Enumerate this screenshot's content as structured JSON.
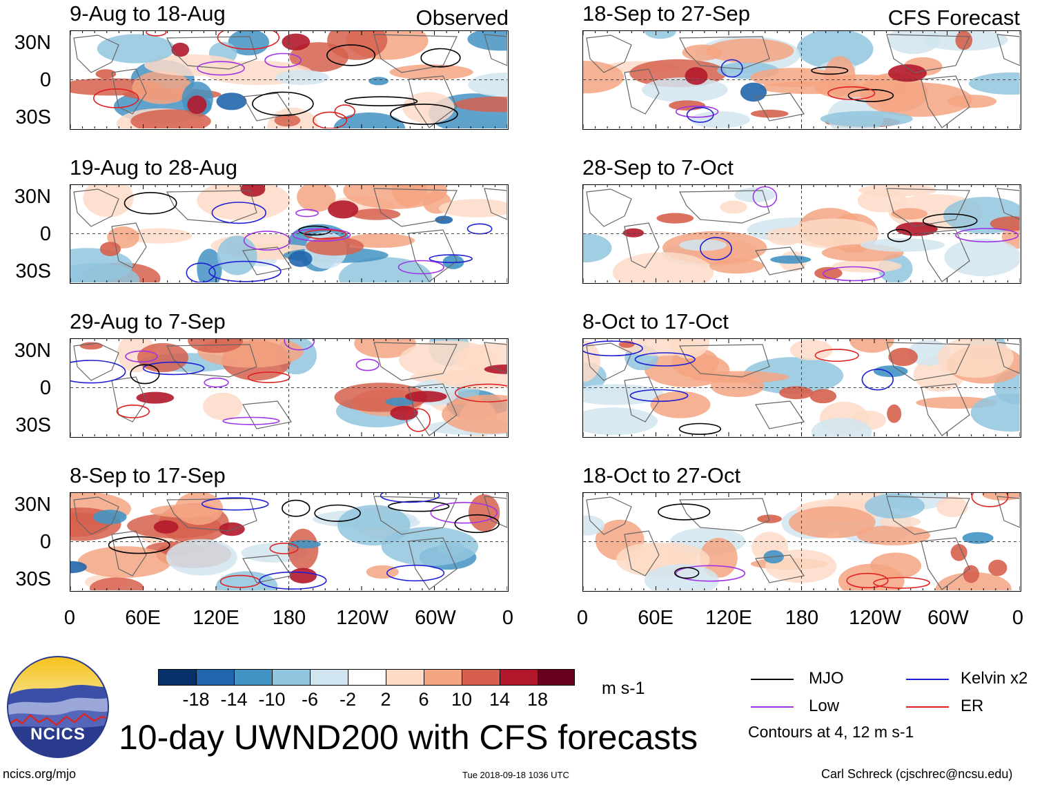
{
  "column_headers": {
    "observed": "Observed",
    "forecast": "CFS Forecast"
  },
  "panels_left": [
    {
      "title": "9-Aug to 18-Aug"
    },
    {
      "title": "19-Aug to 28-Aug"
    },
    {
      "title": "29-Aug to 7-Sep"
    },
    {
      "title": "8-Sep to 17-Sep"
    }
  ],
  "panels_right": [
    {
      "title": "18-Sep to 27-Sep"
    },
    {
      "title": "28-Sep to 7-Oct"
    },
    {
      "title": "8-Oct to 17-Oct"
    },
    {
      "title": "18-Oct to 27-Oct"
    }
  ],
  "y_axis_labels": [
    "30N",
    "0",
    "30S"
  ],
  "x_axis_labels": [
    "0",
    "60E",
    "120E",
    "180",
    "120W",
    "60W",
    "0"
  ],
  "colorbar": {
    "colors": [
      "#08306b",
      "#2166ac",
      "#4393c3",
      "#92c5de",
      "#d1e5f0",
      "#ffffff",
      "#fddbc7",
      "#f4a582",
      "#d6604d",
      "#b2182b",
      "#67001f"
    ],
    "labels": [
      "-18",
      "-14",
      "-10",
      "-6",
      "-2",
      "2",
      "6",
      "10",
      "14",
      "18"
    ],
    "units": "m s-1"
  },
  "legend": {
    "items": [
      {
        "label": "MJO",
        "color": "#000000"
      },
      {
        "label": "Kelvin x2",
        "color": "#1f1fd6"
      },
      {
        "label": "Low",
        "color": "#a033e6"
      },
      {
        "label": "ER",
        "color": "#e02020"
      }
    ],
    "note": "Contours at 4, 12 m s-1"
  },
  "logo_text": "NCICS",
  "main_title": "10-day UWND200 with CFS forecasts",
  "footer": {
    "left": "ncics.org/mjo",
    "center": "Tue 2018-09-18 1036 UTC",
    "right": "Carl Schreck (cjschrec@ncsu.edu)"
  }
}
